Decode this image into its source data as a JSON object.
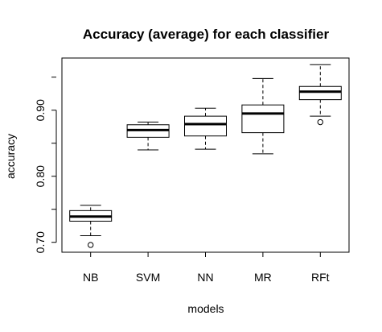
{
  "chart_data": {
    "type": "boxplot",
    "title": "Accuracy (average) for each classifier",
    "xlabel": "models",
    "ylabel": "accuracy",
    "categories": [
      "NB",
      "SVM",
      "NN",
      "MR",
      "RFt"
    ],
    "ylim": [
      0.685,
      0.979
    ],
    "yticks": [
      0.7,
      0.8,
      0.9
    ],
    "ytick_labels": [
      "0.70",
      "0.80",
      "0.90"
    ],
    "grid": false,
    "boxes": [
      {
        "name": "NB",
        "whisker_low": 0.71,
        "q1": 0.732,
        "median": 0.739,
        "q3": 0.748,
        "whisker_high": 0.756,
        "outliers": [
          0.696
        ]
      },
      {
        "name": "SVM",
        "whisker_low": 0.84,
        "q1": 0.859,
        "median": 0.87,
        "q3": 0.878,
        "whisker_high": 0.882,
        "outliers": []
      },
      {
        "name": "NN",
        "whisker_low": 0.841,
        "q1": 0.861,
        "median": 0.879,
        "q3": 0.891,
        "whisker_high": 0.903,
        "outliers": []
      },
      {
        "name": "MR",
        "whisker_low": 0.834,
        "q1": 0.866,
        "median": 0.895,
        "q3": 0.908,
        "whisker_high": 0.948,
        "outliers": []
      },
      {
        "name": "RFt",
        "whisker_low": 0.891,
        "q1": 0.916,
        "median": 0.928,
        "q3": 0.936,
        "whisker_high": 0.969,
        "outliers": [
          0.882
        ]
      }
    ]
  }
}
